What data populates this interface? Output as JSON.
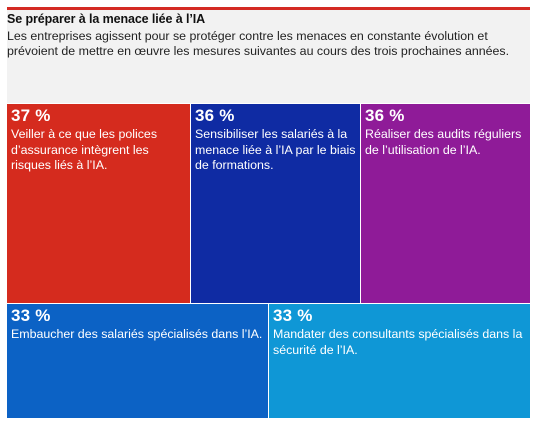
{
  "header": {
    "title": "Se préparer à la menace liée à l’IA",
    "subtitle": "Les entreprises agissent pour se protéger contre les menaces en constante évolution et prévoient de mettre en œuvre les mesures suivantes au cours des trois prochaines années."
  },
  "colors": {
    "accent_bar": "#d42a23",
    "header_bg": "#f2f2f2",
    "tile_red": "#d52b1e",
    "tile_navy": "#0f2ba3",
    "tile_purple": "#8f1b98",
    "tile_blue": "#0c62c5",
    "tile_lightblue": "#0f97d6"
  },
  "chart_data": {
    "type": "treemap",
    "unit": "%",
    "items": [
      {
        "value": 37,
        "pct_label": "37 %",
        "label": "Veiller à ce que les polices d’assurance intègrent les risques liés à l’IA."
      },
      {
        "value": 36,
        "pct_label": "36 %",
        "label": "Sensibiliser les salariés à la menace liée à l’IA par le biais de formations."
      },
      {
        "value": 36,
        "pct_label": "36 %",
        "label": "Réaliser des audits réguliers de l’utilisation de l’IA."
      },
      {
        "value": 33,
        "pct_label": "33 %",
        "label": "Embaucher des salariés spécialisés dans l’IA."
      },
      {
        "value": 33,
        "pct_label": "33 %",
        "label": "Mandater des consultants spécialisés dans la sécurité de l’IA."
      }
    ]
  }
}
